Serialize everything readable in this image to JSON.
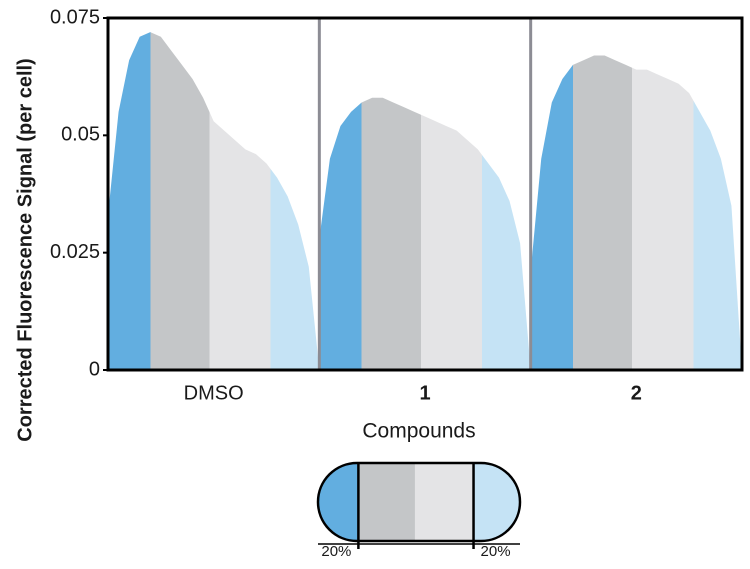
{
  "chart_data": {
    "type": "area",
    "y_label": "Corrected Fluorescence Signal (per cell)",
    "x_label": "Compounds",
    "ylim": [
      0,
      0.075
    ],
    "yticks": [
      0,
      0.025,
      0.05,
      0.075
    ],
    "xlim": [
      0,
      100
    ],
    "x": [
      0,
      5,
      10,
      15,
      20,
      25,
      30,
      35,
      40,
      45,
      50,
      55,
      60,
      65,
      70,
      75,
      80,
      85,
      90,
      95,
      100
    ],
    "segment_edges": [
      0,
      20,
      48,
      77,
      100
    ],
    "segment_colors": [
      "#62aee0",
      "#c4c6c8",
      "#e4e4e6",
      "#c5e3f5"
    ],
    "series": [
      {
        "name": "DMSO",
        "values": [
          0.033,
          0.055,
          0.066,
          0.071,
          0.072,
          0.071,
          0.068,
          0.065,
          0.062,
          0.058,
          0.053,
          0.051,
          0.049,
          0.047,
          0.046,
          0.044,
          0.041,
          0.037,
          0.031,
          0.022,
          0
        ]
      },
      {
        "name": "1",
        "values": [
          0.028,
          0.045,
          0.052,
          0.055,
          0.057,
          0.058,
          0.058,
          0.057,
          0.056,
          0.055,
          0.054,
          0.053,
          0.052,
          0.051,
          0.049,
          0.047,
          0.044,
          0.041,
          0.036,
          0.027,
          0
        ]
      },
      {
        "name": "2",
        "values": [
          0.021,
          0.045,
          0.057,
          0.062,
          0.065,
          0.066,
          0.067,
          0.067,
          0.066,
          0.065,
          0.064,
          0.064,
          0.063,
          0.062,
          0.061,
          0.059,
          0.055,
          0.051,
          0.045,
          0.035,
          0
        ]
      }
    ],
    "legend_labels": [
      "20%",
      "20%"
    ]
  }
}
